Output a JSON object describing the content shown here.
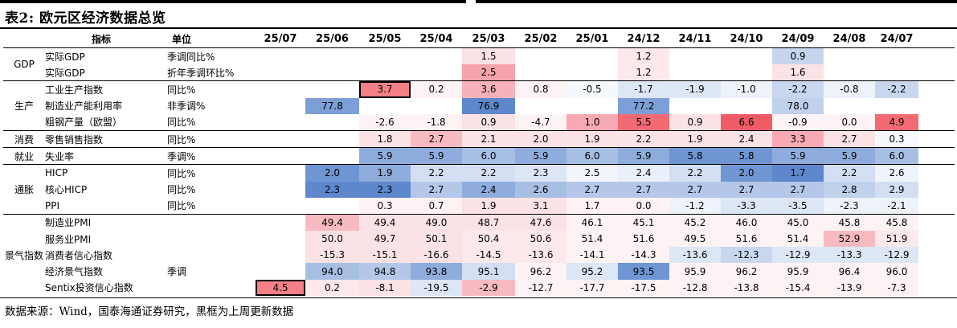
{
  "title": "表2: 欧元区经济数据总览",
  "header": {
    "indicator_label": "指标",
    "unit_label": "单位",
    "periods": [
      "25/07",
      "25/06",
      "25/05",
      "25/04",
      "25/03",
      "25/02",
      "25/01",
      "24/12",
      "24/11",
      "24/10",
      "24/09",
      "24/08",
      "24/07"
    ]
  },
  "groups": [
    {
      "name": "GDP",
      "rows": [
        {
          "indicator": "实际GDP",
          "unit": "季调同比%",
          "values": [
            "",
            "",
            "",
            "",
            "1.5",
            "",
            "",
            "1.2",
            "",
            "",
            "0.9",
            "",
            ""
          ]
        },
        {
          "indicator": "实际GDP",
          "unit": "折年季调环比%",
          "values": [
            "",
            "",
            "",
            "",
            "2.5",
            "",
            "",
            "1.2",
            "",
            "",
            "1.6",
            "",
            ""
          ]
        }
      ]
    },
    {
      "name": "生产",
      "rows": [
        {
          "indicator": "工业生产指数",
          "unit": "同比%",
          "values": [
            "",
            "",
            "3.7",
            "0.2",
            "3.6",
            "0.8",
            "-0.5",
            "-1.7",
            "-1.9",
            "-1.0",
            "-2.2",
            "-0.8",
            "-2.2"
          ]
        },
        {
          "indicator": "制造业产能利用率",
          "unit": "非季调%",
          "values": [
            "",
            "77.8",
            "",
            "",
            "76.9",
            "",
            "",
            "77.2",
            "",
            "",
            "78.0",
            "",
            ""
          ]
        },
        {
          "indicator": "粗钢产量（欧盟）",
          "unit": "同比%",
          "values": [
            "",
            "",
            "-2.6",
            "-1.8",
            "0.9",
            "-4.7",
            "1.0",
            "5.5",
            "0.9",
            "6.6",
            "-0.9",
            "0.0",
            "4.9"
          ]
        }
      ]
    },
    {
      "name": "消费",
      "rows": [
        {
          "indicator": "零售销售指数",
          "unit": "同比%",
          "values": [
            "",
            "",
            "1.8",
            "2.7",
            "2.1",
            "2.0",
            "1.9",
            "2.2",
            "1.9",
            "2.4",
            "3.3",
            "2.7",
            "0.3"
          ]
        }
      ]
    },
    {
      "name": "就业",
      "rows": [
        {
          "indicator": "失业率",
          "unit": "季调%",
          "values": [
            "",
            "",
            "5.9",
            "5.9",
            "6.0",
            "5.9",
            "6.0",
            "5.9",
            "5.8",
            "5.8",
            "5.9",
            "5.9",
            "6.0"
          ]
        }
      ]
    },
    {
      "name": "通胀",
      "rows": [
        {
          "indicator": "HICP",
          "unit": "同比%",
          "values": [
            "",
            "2.0",
            "1.9",
            "2.2",
            "2.2",
            "2.3",
            "2.5",
            "2.4",
            "2.2",
            "2.0",
            "1.7",
            "2.2",
            "2.6"
          ]
        },
        {
          "indicator": "核心HICP",
          "unit": "同比%",
          "values": [
            "",
            "2.3",
            "2.3",
            "2.7",
            "2.4",
            "2.6",
            "2.7",
            "2.7",
            "2.7",
            "2.7",
            "2.7",
            "2.8",
            "2.9"
          ]
        },
        {
          "indicator": "PPI",
          "unit": "同比%",
          "values": [
            "",
            "",
            "0.3",
            "0.7",
            "1.9",
            "3.1",
            "1.7",
            "0.0",
            "-1.2",
            "-3.3",
            "-3.5",
            "-2.3",
            "-2.1"
          ]
        }
      ]
    },
    {
      "name": "景气指数",
      "rows": [
        {
          "indicator": "制造业PMI",
          "unit": "",
          "values": [
            "",
            "49.4",
            "49.4",
            "49.0",
            "48.7",
            "47.6",
            "46.1",
            "45.1",
            "45.2",
            "46.0",
            "45.0",
            "45.8",
            "45.8"
          ]
        },
        {
          "indicator": "服务业PMI",
          "unit": "",
          "values": [
            "",
            "50.0",
            "49.7",
            "50.1",
            "50.4",
            "50.6",
            "51.4",
            "51.6",
            "49.5",
            "51.6",
            "51.4",
            "52.9",
            "51.9"
          ]
        },
        {
          "indicator": "消费者信心指数",
          "unit": "",
          "values": [
            "",
            "-15.3",
            "-15.1",
            "-16.6",
            "-14.5",
            "-13.6",
            "-14.1",
            "-14.3",
            "-13.6",
            "-12.3",
            "-12.9",
            "-13.3",
            "-12.9"
          ]
        },
        {
          "indicator": "经济景气指数",
          "unit": "季调",
          "values": [
            "",
            "94.0",
            "94.8",
            "93.8",
            "95.1",
            "96.2",
            "95.2",
            "93.5",
            "95.9",
            "96.2",
            "95.9",
            "96.4",
            "96.0"
          ]
        },
        {
          "indicator": "Sentix投资信心指数",
          "unit": "",
          "values": [
            "4.5",
            "0.2",
            "-8.1",
            "-19.5",
            "-2.9",
            "-12.7",
            "-17.7",
            "-17.5",
            "-12.8",
            "-13.8",
            "-15.4",
            "-13.9",
            "-7.3"
          ]
        }
      ]
    }
  ],
  "colors": {
    "rows": [
      [
        "",
        "",
        "",
        "",
        "#fbe2e5",
        "",
        "",
        "#fde9eb",
        "",
        "",
        "#c5d5ee",
        "",
        ""
      ],
      [
        "",
        "",
        "",
        "",
        "#f7a3ad",
        "",
        "",
        "#fde9eb",
        "",
        "",
        "#fbe2e5",
        "",
        ""
      ],
      [
        "",
        "",
        "#f47f87",
        "#fdf3f4",
        "#f7b1ba",
        "#fdf3f4",
        "#f5f8fd",
        "#dce6f5",
        "#dce6f5",
        "#eef3fa",
        "#c8d7ef",
        "#eef3fa",
        "#c8d7ef"
      ],
      [
        "",
        "#7d9fd7",
        "",
        "",
        "#5e87cc",
        "",
        "",
        "#7d9fd7",
        "",
        "",
        "#c0d1ec",
        "",
        ""
      ],
      [
        "",
        "",
        "#fdf3f4",
        "#fdf3f4",
        "#fbe2e5",
        "#fdf3f4",
        "#f7aab3",
        "#f36a73",
        "#fbe2e5",
        "#f05b66",
        "#fdf3f4",
        "#fdf3f4",
        "#f36a73"
      ],
      [
        "",
        "",
        "#fbe2e5",
        "#f8bac1",
        "#fbe2e5",
        "#fbe2e5",
        "#fbe2e5",
        "#fbe2e5",
        "#fbe2e5",
        "#fbe2e5",
        "#f7aab3",
        "#fbe2e5",
        "#f5f8fd"
      ],
      [
        "",
        "",
        "#8eacdc",
        "#8eacdc",
        "#a8bfe4",
        "#8eacdc",
        "#a8bfe4",
        "#8eacdc",
        "#6f96d3",
        "#6f96d3",
        "#8eacdc",
        "#8eacdc",
        "#a8bfe4"
      ],
      [
        "",
        "#6f96d3",
        "#8eacdc",
        "#d3def2",
        "#d3def2",
        "#dce6f5",
        "#f2f6fb",
        "#eaf0f9",
        "#d3def2",
        "#6f96d3",
        "#5e87cc",
        "#d3def2",
        "#eff3fa"
      ],
      [
        "",
        "#5e87cc",
        "#5e87cc",
        "#b4c7e8",
        "#8eacdc",
        "#a8bfe4",
        "#b4c7e8",
        "#b4c7e8",
        "#b4c7e8",
        "#b4c7e8",
        "#b4c7e8",
        "#c0d1ec",
        "#d3def2"
      ],
      [
        "",
        "",
        "#fdf3f4",
        "#fdf3f4",
        "#fbe2e5",
        "#fbe2e5",
        "#fdf3f4",
        "#fdf3f4",
        "#eef3fa",
        "#dce6f5",
        "#dce6f5",
        "#eef3fa",
        "#eef3fa"
      ],
      [
        "",
        "#f8bac1",
        "#fbe2e5",
        "#fbe2e5",
        "#fbe2e5",
        "#fbe2e5",
        "#fdf3f4",
        "#fdf3f4",
        "#fdf3f4",
        "#fdf3f4",
        "#fdf3f4",
        "#fdf3f4",
        "#fdf3f4"
      ],
      [
        "",
        "#fbe2e5",
        "#fbe2e5",
        "#fbe2e5",
        "#fde9eb",
        "#fde9eb",
        "#fdf3f4",
        "#fdf3f4",
        "#fdf3f4",
        "#fdf3f4",
        "#fdf3f4",
        "#f8bac1",
        "#fde9eb"
      ],
      [
        "",
        "#fbe2e5",
        "#fbe2e5",
        "#fbe2e5",
        "#fde9eb",
        "#fde9eb",
        "#fdf3f4",
        "#fdf3f4",
        "#dce6f5",
        "#c8d7ef",
        "#dce6f5",
        "#dce6f5",
        "#dce6f5"
      ],
      [
        "",
        "#a8bfe4",
        "#b4c7e8",
        "#8eacdc",
        "#d3def2",
        "#fdf3f4",
        "#dce6f5",
        "#6f96d3",
        "#fdf3f4",
        "#fdf3f4",
        "#fdf3f4",
        "#fdf3f4",
        "#fdf3f4"
      ],
      [
        "#f47f87",
        "#fde9eb",
        "#fbe2e5",
        "#dce6f5",
        "#f8bac1",
        "#fdf3f4",
        "#fdf3f4",
        "#fdf3f4",
        "#fdf3f4",
        "#fdf3f4",
        "#fdf3f4",
        "#fdf3f4",
        "#fdf3f4"
      ]
    ],
    "boxed": [
      [
        2,
        2
      ],
      [
        14,
        0
      ]
    ]
  },
  "footer": "数据来源：Wind，国泰海通证券研究，黑框为上周更新数据"
}
